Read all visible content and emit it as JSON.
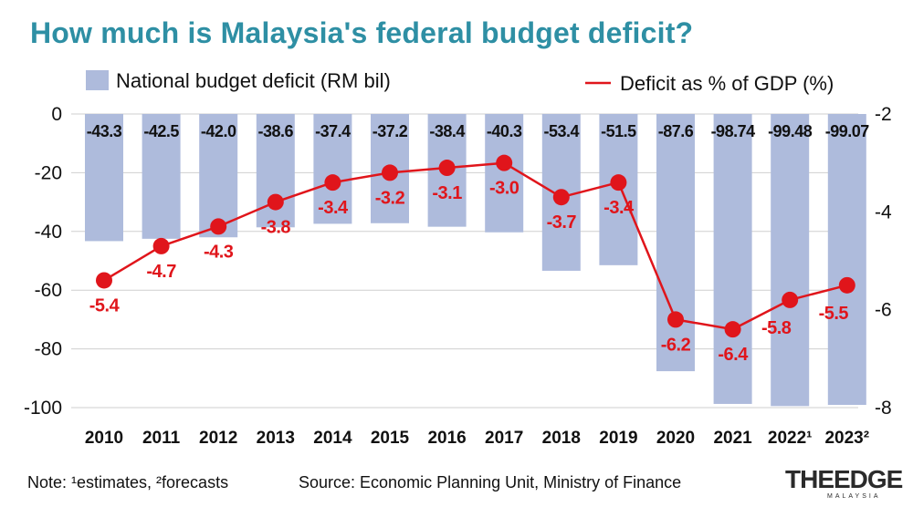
{
  "title": "How much is Malaysia's federal budget deficit?",
  "note": "Note: ¹estimates, ²forecasts",
  "source": "Source: Economic Planning Unit, Ministry of Finance",
  "logo": {
    "main": "THEEDGE",
    "sub": "MALAYSIA"
  },
  "colors": {
    "title": "#2e8fa4",
    "bar": "#aebbdc",
    "line": "#e0151b",
    "grid": "#cfcfcf"
  },
  "chart_data": {
    "type": "bar",
    "categories": [
      "2010",
      "2011",
      "2012",
      "2013",
      "2014",
      "2015",
      "2016",
      "2017",
      "2018",
      "2019",
      "2020",
      "2021",
      "2022¹",
      "2023²"
    ],
    "series": [
      {
        "name": "National budget deficit (RM bil)",
        "type": "bar",
        "axis": "left",
        "values": [
          -43.3,
          -42.5,
          -42.0,
          -38.6,
          -37.4,
          -37.2,
          -38.4,
          -40.3,
          -53.4,
          -51.5,
          -87.6,
          -98.74,
          -99.48,
          -99.07
        ],
        "labels": [
          "-43.3",
          "-42.5",
          "-42.0",
          "-38.6",
          "-37.4",
          "-37.2",
          "-38.4",
          "-40.3",
          "-53.4",
          "-51.5",
          "-87.6",
          "-98.74",
          "-99.48",
          "-99.07"
        ]
      },
      {
        "name": "Deficit as % of GDP (%)",
        "type": "line",
        "axis": "right",
        "values": [
          -5.4,
          -4.7,
          -4.3,
          -3.8,
          -3.4,
          -3.2,
          -3.1,
          -3.0,
          -3.7,
          -3.4,
          -6.2,
          -6.4,
          -5.8,
          -5.5
        ],
        "labels": [
          "-5.4",
          "-4.7",
          "-4.3",
          "-3.8",
          "-3.4",
          "-3.2",
          "-3.1",
          "-3.0",
          "-3.7",
          "-3.4",
          "-6.2",
          "-6.4",
          "-5.8",
          "-5.5"
        ]
      }
    ],
    "y_left": {
      "ticks": [
        0,
        -20,
        -40,
        -60,
        -80,
        -100
      ],
      "tick_labels": [
        "0",
        "-20",
        "-40",
        "-60",
        "-80",
        "-100"
      ],
      "lim": [
        -100,
        0
      ]
    },
    "y_right": {
      "ticks": [
        -2,
        -4,
        -6,
        -8
      ],
      "tick_labels": [
        "-2",
        "-4",
        "-6",
        "-8"
      ],
      "lim": [
        -8,
        -2
      ]
    },
    "grid": true,
    "legend_placement": "top"
  }
}
